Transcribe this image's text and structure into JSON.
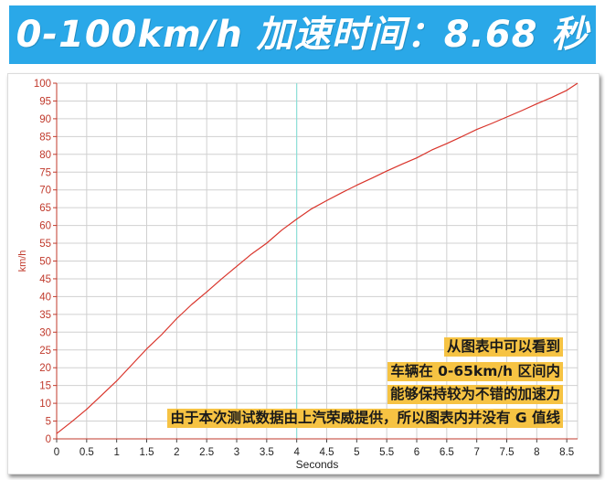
{
  "header": {
    "title": "0-100km/h 加速时间：8.68 秒",
    "background_color": "#2aa8e8",
    "text_color": "#ffffff"
  },
  "annotation": {
    "lines": [
      "从图表中可以看到",
      "车辆在 0-65km/h 区间内",
      "能够保持较为不错的加速力",
      "由于本次测试数据由上汽荣威提供，所以图表内并没有 G 值线"
    ],
    "highlight_color": "#f6c343"
  },
  "chart_data": {
    "type": "line",
    "xlabel": "Seconds",
    "ylabel": "km/h",
    "xlim": [
      0,
      8.68
    ],
    "ylim": [
      0,
      100
    ],
    "x_ticks": [
      0,
      0.5,
      1,
      1.5,
      2,
      2.5,
      3,
      3.5,
      4,
      4.5,
      5,
      5.5,
      6,
      6.5,
      7,
      7.5,
      8,
      8.5
    ],
    "x_tick_labels": [
      "0",
      "0.5",
      "1",
      "1.5",
      "2",
      "2.5",
      "3",
      "3.5",
      "4",
      "4.5",
      "5",
      "5.5",
      "6",
      "6.5",
      "7",
      "7.5",
      "8",
      "8.5"
    ],
    "y_ticks": [
      0,
      5,
      10,
      15,
      20,
      25,
      30,
      35,
      40,
      45,
      50,
      55,
      60,
      65,
      70,
      75,
      80,
      85,
      90,
      95,
      100
    ],
    "y_tick_labels": [
      "0",
      "5",
      "10",
      "15",
      "20",
      "25",
      "30",
      "35",
      "40",
      "45",
      "50",
      "55",
      "60",
      "65",
      "70",
      "75",
      "80",
      "85",
      "90",
      "95",
      "100"
    ],
    "grid": true,
    "highlight_x": 4,
    "series": [
      {
        "color": "#d9342b",
        "x": [
          0,
          0.25,
          0.5,
          0.75,
          1,
          1.25,
          1.5,
          1.75,
          2,
          2.25,
          2.5,
          2.75,
          3,
          3.25,
          3.5,
          3.75,
          4,
          4.25,
          4.5,
          4.75,
          5,
          5.25,
          5.5,
          5.75,
          6,
          6.25,
          6.5,
          6.75,
          7,
          7.25,
          7.5,
          7.75,
          8,
          8.25,
          8.5,
          8.68
        ],
        "y": [
          1.5,
          4.8,
          8.3,
          12.3,
          16.3,
          20.8,
          25.3,
          29.3,
          33.8,
          37.8,
          41.3,
          45.0,
          48.5,
          52.0,
          55.0,
          58.7,
          61.8,
          64.7,
          67.0,
          69.2,
          71.3,
          73.3,
          75.3,
          77.2,
          79.0,
          81.2,
          83.0,
          85.0,
          87.0,
          88.7,
          90.5,
          92.3,
          94.2,
          96.0,
          98.0,
          100.0
        ]
      }
    ]
  }
}
